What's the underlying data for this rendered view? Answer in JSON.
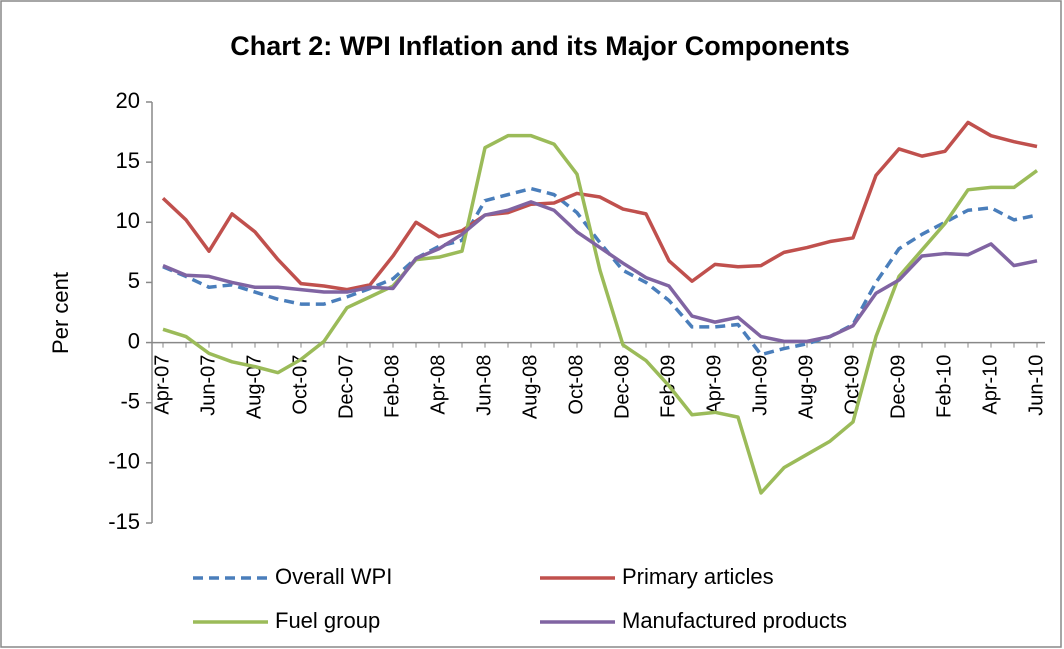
{
  "chart_data": {
    "type": "line",
    "title": "Chart 2: WPI Inflation and its Major Components",
    "y_label": "Per cent",
    "categories": [
      "Apr-07",
      null,
      "Jun-07",
      null,
      "Aug-07",
      null,
      "Oct-07",
      null,
      "Dec-07",
      null,
      "Feb-08",
      null,
      "Apr-08",
      null,
      "Jun-08",
      null,
      "Aug-08",
      null,
      "Oct-08",
      null,
      "Dec-08",
      null,
      "Feb-09",
      null,
      "Apr-09",
      null,
      "Jun-09",
      null,
      "Aug-09",
      null,
      "Oct-09",
      null,
      "Dec-09",
      null,
      "Feb-10",
      null,
      "Apr-10",
      null,
      "Jun-10"
    ],
    "ylim": [
      -15,
      20
    ],
    "yticks": [
      -15,
      -10,
      -5,
      0,
      5,
      10,
      15,
      20
    ],
    "series": [
      {
        "name": "Overall WPI",
        "color": "#4a7ebb",
        "dashed": true,
        "values": [
          6.3,
          5.5,
          4.6,
          4.8,
          4.2,
          3.6,
          3.2,
          3.2,
          3.8,
          4.5,
          5.3,
          7.0,
          8.0,
          8.5,
          11.8,
          12.3,
          12.8,
          12.3,
          10.8,
          8.3,
          6.0,
          5.0,
          3.5,
          1.3,
          1.3,
          1.5,
          -1.0,
          -0.5,
          -0.1,
          0.5,
          1.5,
          5.0,
          7.8,
          9.0,
          10.0,
          11.0,
          11.2,
          10.2,
          10.6
        ]
      },
      {
        "name": "Primary articles",
        "color": "#c0504d",
        "values": [
          12.0,
          10.2,
          7.6,
          10.7,
          9.2,
          6.9,
          4.9,
          4.7,
          4.4,
          4.8,
          7.2,
          10.0,
          8.8,
          9.3,
          10.6,
          10.8,
          11.5,
          11.6,
          12.4,
          12.1,
          11.1,
          10.7,
          6.8,
          5.1,
          6.5,
          6.3,
          6.4,
          7.5,
          7.9,
          8.4,
          8.7,
          13.9,
          16.1,
          15.5,
          15.9,
          18.3,
          17.2,
          16.7,
          16.3
        ]
      },
      {
        "name": "Fuel group",
        "color": "#9bbb59",
        "values": [
          1.1,
          0.5,
          -0.9,
          -1.6,
          -2.0,
          -2.5,
          -1.4,
          0.1,
          2.9,
          3.8,
          4.7,
          6.9,
          7.1,
          7.6,
          16.2,
          17.2,
          17.2,
          16.5,
          14.0,
          6.0,
          -0.2,
          -1.5,
          -3.6,
          -6.0,
          -5.8,
          -6.2,
          -12.5,
          -10.4,
          -9.3,
          -8.2,
          -6.6,
          0.5,
          5.5,
          7.7,
          9.9,
          12.7,
          12.9,
          12.9,
          14.3
        ]
      },
      {
        "name": "Manufactured products",
        "color": "#8064a2",
        "values": [
          6.4,
          5.6,
          5.5,
          5.0,
          4.6,
          4.6,
          4.4,
          4.2,
          4.2,
          4.6,
          4.5,
          7.0,
          7.8,
          9.0,
          10.6,
          11.0,
          11.7,
          11.0,
          9.2,
          7.9,
          6.6,
          5.4,
          4.7,
          2.2,
          1.7,
          2.1,
          0.5,
          0.1,
          0.1,
          0.5,
          1.4,
          4.1,
          5.2,
          7.2,
          7.4,
          7.3,
          8.2,
          6.4,
          6.8
        ]
      }
    ]
  }
}
